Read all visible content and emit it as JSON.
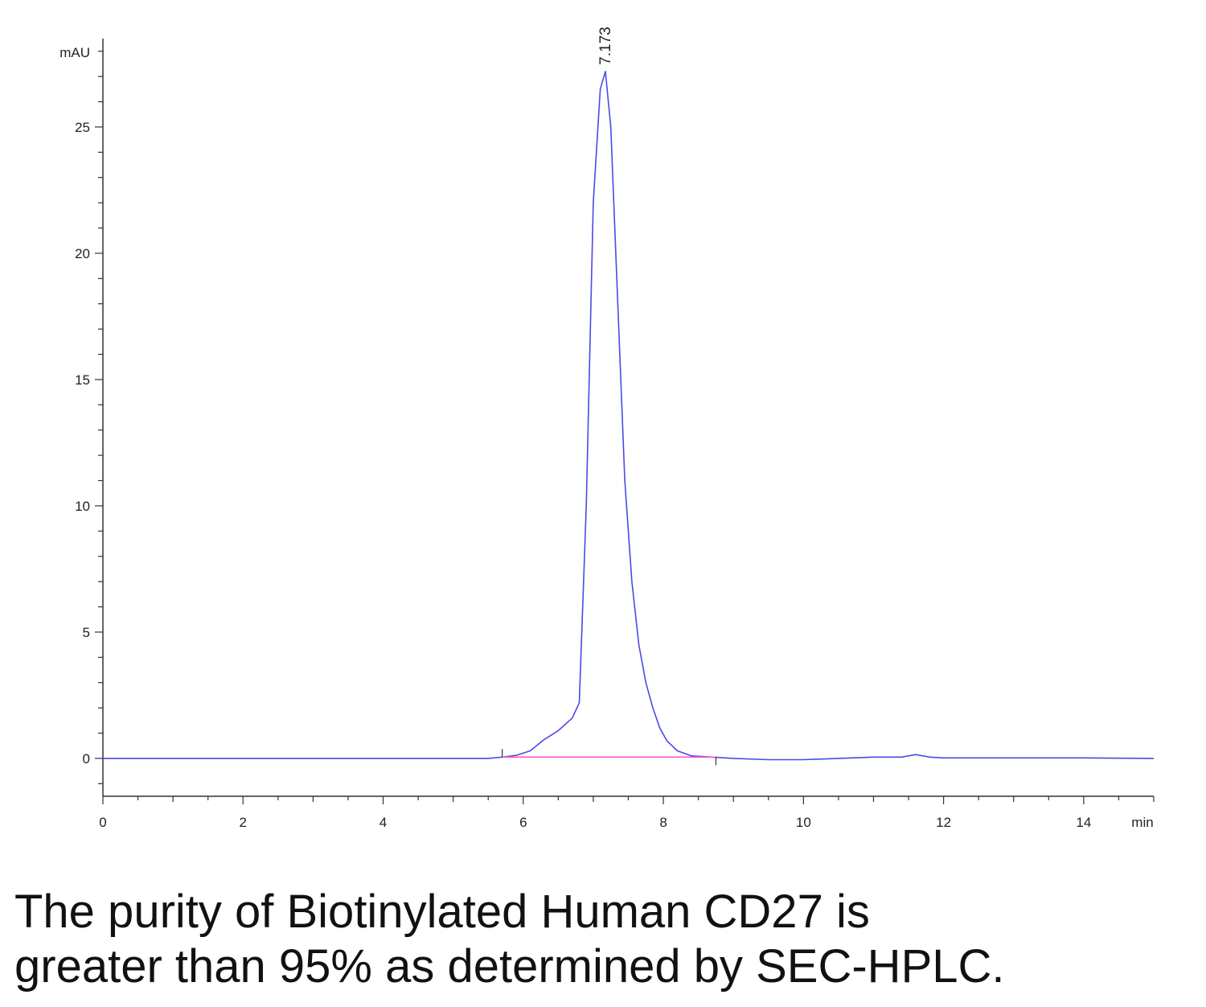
{
  "chart_data": {
    "type": "line",
    "ylabel": "mAU",
    "xlabel": "min",
    "xlim": [
      0,
      15
    ],
    "ylim": [
      -1.5,
      28.5
    ],
    "x_ticks": [
      "0",
      "2",
      "4",
      "6",
      "8",
      "10",
      "12",
      "14"
    ],
    "y_ticks": [
      "0",
      "5",
      "10",
      "15",
      "20",
      "25"
    ],
    "peak_label": "7.173",
    "series": [
      {
        "color": "#4a4ae8",
        "x": [
          0,
          1,
          2,
          3,
          4,
          5,
          5.5,
          5.7,
          5.9,
          6.1,
          6.3,
          6.5,
          6.7,
          6.8,
          6.9,
          7.0,
          7.1,
          7.173,
          7.25,
          7.35,
          7.45,
          7.55,
          7.65,
          7.75,
          7.85,
          7.95,
          8.05,
          8.2,
          8.4,
          8.7,
          9.0,
          9.5,
          10.0,
          10.5,
          11.0,
          11.4,
          11.6,
          11.8,
          12.0,
          13.0,
          14.0,
          15.0
        ],
        "y": [
          0,
          0,
          0,
          0,
          0,
          0,
          0,
          0.05,
          0.12,
          0.3,
          0.75,
          1.1,
          1.6,
          2.2,
          10,
          22,
          26.5,
          27.2,
          25,
          18,
          11,
          7,
          4.5,
          3.0,
          2.0,
          1.2,
          0.7,
          0.3,
          0.1,
          0.05,
          0,
          -0.05,
          -0.05,
          0,
          0.05,
          0.05,
          0.15,
          0.05,
          0.02,
          0.02,
          0.02,
          0
        ]
      },
      {
        "color": "#ff55cc",
        "x": [
          5.7,
          8.75
        ],
        "y": [
          0.05,
          0.05
        ]
      }
    ],
    "grid": false
  },
  "caption": {
    "line1": "The purity of Biotinylated Human CD27 is",
    "line2": "greater than 95% as determined by SEC-HPLC."
  }
}
